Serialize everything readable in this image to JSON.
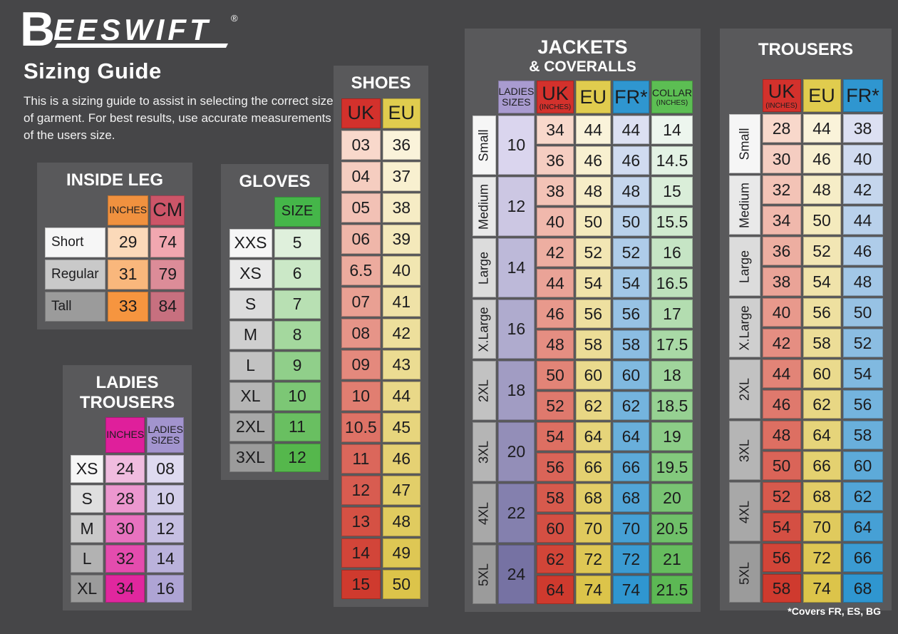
{
  "page": {
    "logo": {
      "b": "B",
      "text": "EESWIFT",
      "mark": "®"
    },
    "title": "Sizing Guide",
    "intro": "This is a sizing guide to assist in selecting the correct size of garment. For best results, use accurate measurements of the users size.",
    "footnote": "*Covers FR, ES, BG"
  },
  "colors": {
    "page_bg": "#464648",
    "panel_bg": "#59595B",
    "cell_text": "#1C1C1E",
    "title_text": "#FFFFFF",
    "headers": {
      "orange": "#F0913F",
      "rose": "#CC5568",
      "magenta": "#DF1F9B",
      "lilac": "#A294CE",
      "green": "#45B649",
      "red": "#D3312C",
      "yellow": "#E0CC4E",
      "blue": "#2F96D0",
      "collar_green": "#5CBE53",
      "ladies_purple": "#A99BD0"
    },
    "ramps": {
      "label_gray": [
        "#F6F6F6",
        "#9B9B9B"
      ],
      "orange_inches": [
        "#FBD9B9",
        "#F6953F"
      ],
      "rose_cm": [
        "#F1A7B0",
        "#C7707F"
      ],
      "magenta_inches": [
        "#F0BCDF",
        "#E0279E"
      ],
      "lilac_sizes": [
        "#DEDAF0",
        "#AEA4D4"
      ],
      "green_size": [
        "#DFF0DC",
        "#55B74C"
      ],
      "red_uk": [
        "#F8D8CB",
        "#CF3A2E"
      ],
      "yellow_eu": [
        "#FAF3DA",
        "#DCC44A"
      ],
      "blue_fr": [
        "#DCE0F2",
        "#2F96D0"
      ],
      "green_collar": [
        "#EDF6EE",
        "#5CB854"
      ],
      "purple_ladies": [
        "#DAD5EE",
        "#7672A3"
      ]
    }
  },
  "tables": {
    "inside_leg": {
      "title_lines": [
        "INSIDE LEG"
      ],
      "columns": [
        {
          "header": "INCHES",
          "style": "sm",
          "header_bg": "orange",
          "ramp": "orange_inches"
        },
        {
          "header": "CM",
          "style": "lg",
          "header_bg": "rose",
          "ramp": "rose_cm"
        }
      ],
      "rows": [
        {
          "label": "Short",
          "values": [
            "29",
            "74"
          ]
        },
        {
          "label": "Regular",
          "values": [
            "31",
            "79"
          ]
        },
        {
          "label": "Tall",
          "values": [
            "33",
            "84"
          ]
        }
      ]
    },
    "gloves": {
      "title_lines": [
        "GLOVES"
      ],
      "columns": [
        {
          "header": "SIZE",
          "style": "md",
          "header_bg": "green",
          "ramp": "green_size"
        }
      ],
      "rows": [
        {
          "label": "XXS",
          "values": [
            "5"
          ]
        },
        {
          "label": "XS",
          "values": [
            "6"
          ]
        },
        {
          "label": "S",
          "values": [
            "7"
          ]
        },
        {
          "label": "M",
          "values": [
            "8"
          ]
        },
        {
          "label": "L",
          "values": [
            "9"
          ]
        },
        {
          "label": "XL",
          "values": [
            "10"
          ]
        },
        {
          "label": "2XL",
          "values": [
            "11"
          ]
        },
        {
          "label": "3XL",
          "values": [
            "12"
          ]
        }
      ]
    },
    "ladies_trousers": {
      "title_lines": [
        "LADIES",
        "TROUSERS"
      ],
      "columns": [
        {
          "header": "INCHES",
          "style": "sm",
          "header_bg": "magenta",
          "ramp": "magenta_inches"
        },
        {
          "header": "LADIES SIZES",
          "style": "sm",
          "header_bg": "lilac",
          "ramp": "lilac_sizes"
        }
      ],
      "rows": [
        {
          "label": "XS",
          "values": [
            "24",
            "08"
          ]
        },
        {
          "label": "S",
          "values": [
            "28",
            "10"
          ]
        },
        {
          "label": "M",
          "values": [
            "30",
            "12"
          ]
        },
        {
          "label": "L",
          "values": [
            "32",
            "14"
          ]
        },
        {
          "label": "XL",
          "values": [
            "34",
            "16"
          ]
        }
      ]
    },
    "shoes": {
      "title_lines": [
        "SHOES"
      ],
      "columns": [
        {
          "header": "UK",
          "style": "lg",
          "header_bg": "red",
          "ramp": "red_uk"
        },
        {
          "header": "EU",
          "style": "lg",
          "header_bg": "yellow",
          "ramp": "yellow_eu"
        }
      ],
      "rows": [
        {
          "values": [
            "03",
            "36"
          ]
        },
        {
          "values": [
            "04",
            "37"
          ]
        },
        {
          "values": [
            "05",
            "38"
          ]
        },
        {
          "values": [
            "06",
            "39"
          ]
        },
        {
          "values": [
            "6.5",
            "40"
          ]
        },
        {
          "values": [
            "07",
            "41"
          ]
        },
        {
          "values": [
            "08",
            "42"
          ]
        },
        {
          "values": [
            "09",
            "43"
          ]
        },
        {
          "values": [
            "10",
            "44"
          ]
        },
        {
          "values": [
            "10.5",
            "45"
          ]
        },
        {
          "values": [
            "11",
            "46"
          ]
        },
        {
          "values": [
            "12",
            "47"
          ]
        },
        {
          "values": [
            "13",
            "48"
          ]
        },
        {
          "values": [
            "14",
            "49"
          ]
        },
        {
          "values": [
            "15",
            "50"
          ]
        }
      ]
    },
    "jackets": {
      "title_lines": [
        "JACKETS",
        "& COVERALLS"
      ],
      "ladies_column": {
        "header": "LADIES SIZES",
        "style": "sm",
        "header_bg": "ladies_purple",
        "ramp": "purple_ladies"
      },
      "columns": [
        {
          "header": "UK",
          "sub": "(INCHES)",
          "style": "lg",
          "header_bg": "red",
          "ramp": "red_uk"
        },
        {
          "header": "EU",
          "style": "lg",
          "header_bg": "yellow",
          "ramp": "yellow_eu"
        },
        {
          "header": "FR*",
          "style": "lg",
          "header_bg": "blue",
          "ramp": "blue_fr"
        },
        {
          "header": "COLLAR",
          "sub": "(INCHES)",
          "style": "sm",
          "header_bg": "collar_green",
          "ramp": "green_collar"
        }
      ],
      "groups": [
        {
          "label": "Small",
          "ladies": "10",
          "rows": [
            [
              "34",
              "44",
              "44",
              "14"
            ],
            [
              "36",
              "46",
              "46",
              "14.5"
            ]
          ]
        },
        {
          "label": "Medium",
          "ladies": "12",
          "rows": [
            [
              "38",
              "48",
              "48",
              "15"
            ],
            [
              "40",
              "50",
              "50",
              "15.5"
            ]
          ]
        },
        {
          "label": "Large",
          "ladies": "14",
          "rows": [
            [
              "42",
              "52",
              "52",
              "16"
            ],
            [
              "44",
              "54",
              "54",
              "16.5"
            ]
          ]
        },
        {
          "label": "X.Large",
          "ladies": "16",
          "rows": [
            [
              "46",
              "56",
              "56",
              "17"
            ],
            [
              "48",
              "58",
              "58",
              "17.5"
            ]
          ]
        },
        {
          "label": "2XL",
          "ladies": "18",
          "rows": [
            [
              "50",
              "60",
              "60",
              "18"
            ],
            [
              "52",
              "62",
              "62",
              "18.5"
            ]
          ]
        },
        {
          "label": "3XL",
          "ladies": "20",
          "rows": [
            [
              "54",
              "64",
              "64",
              "19"
            ],
            [
              "56",
              "66",
              "66",
              "19.5"
            ]
          ]
        },
        {
          "label": "4XL",
          "ladies": "22",
          "rows": [
            [
              "58",
              "68",
              "68",
              "20"
            ],
            [
              "60",
              "70",
              "70",
              "20.5"
            ]
          ]
        },
        {
          "label": "5XL",
          "ladies": "24",
          "rows": [
            [
              "62",
              "72",
              "72",
              "21"
            ],
            [
              "64",
              "74",
              "74",
              "21.5"
            ]
          ]
        }
      ]
    },
    "trousers": {
      "title_lines": [
        "TROUSERS"
      ],
      "columns": [
        {
          "header": "UK",
          "sub": "(INCHES)",
          "style": "lg",
          "header_bg": "red",
          "ramp": "red_uk"
        },
        {
          "header": "EU",
          "style": "lg",
          "header_bg": "yellow",
          "ramp": "yellow_eu"
        },
        {
          "header": "FR*",
          "style": "lg",
          "header_bg": "blue",
          "ramp": "blue_fr"
        }
      ],
      "groups": [
        {
          "label": "Small",
          "rows": [
            [
              "28",
              "44",
              "38"
            ],
            [
              "30",
              "46",
              "40"
            ]
          ]
        },
        {
          "label": "Medium",
          "rows": [
            [
              "32",
              "48",
              "42"
            ],
            [
              "34",
              "50",
              "44"
            ]
          ]
        },
        {
          "label": "Large",
          "rows": [
            [
              "36",
              "52",
              "46"
            ],
            [
              "38",
              "54",
              "48"
            ]
          ]
        },
        {
          "label": "X.Large",
          "rows": [
            [
              "40",
              "56",
              "50"
            ],
            [
              "42",
              "58",
              "52"
            ]
          ]
        },
        {
          "label": "2XL",
          "rows": [
            [
              "44",
              "60",
              "54"
            ],
            [
              "46",
              "62",
              "56"
            ]
          ]
        },
        {
          "label": "3XL",
          "rows": [
            [
              "48",
              "64",
              "58"
            ],
            [
              "50",
              "66",
              "60"
            ]
          ]
        },
        {
          "label": "4XL",
          "rows": [
            [
              "52",
              "68",
              "62"
            ],
            [
              "54",
              "70",
              "64"
            ]
          ]
        },
        {
          "label": "5XL",
          "rows": [
            [
              "56",
              "72",
              "66"
            ],
            [
              "58",
              "74",
              "68"
            ]
          ]
        }
      ]
    }
  }
}
